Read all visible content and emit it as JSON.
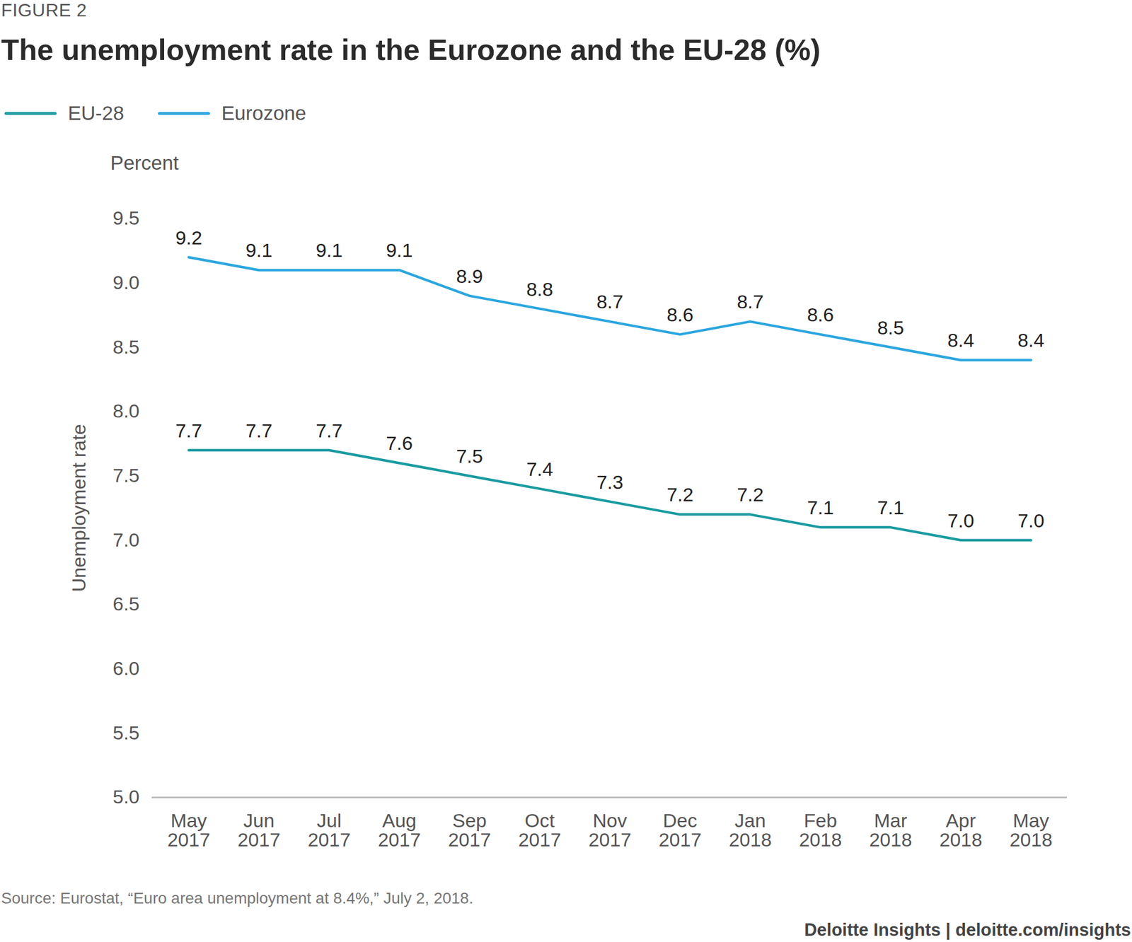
{
  "chart_data": {
    "type": "line",
    "figure_label": "FIGURE 2",
    "title": "The unemployment rate in the Eurozone and the EU-28 (%)",
    "y_unit_label": "Percent",
    "ylabel": "Unemployment rate",
    "source": "Source: Eurostat, “Euro area unemployment at 8.4%,” July 2, 2018.",
    "footer": "Deloitte Insights | deloitte.com/insights",
    "categories": [
      "May 2017",
      "Jun 2017",
      "Jul 2017",
      "Aug 2017",
      "Sep 2017",
      "Oct 2017",
      "Nov 2017",
      "Dec 2017",
      "Jan 2018",
      "Feb 2018",
      "Mar 2018",
      "Apr 2018",
      "May 2018"
    ],
    "series": [
      {
        "name": "EU-28",
        "color": "#1a9ba1",
        "values": [
          7.7,
          7.7,
          7.7,
          7.6,
          7.5,
          7.4,
          7.3,
          7.2,
          7.2,
          7.1,
          7.1,
          7.0,
          7.0
        ],
        "value_labels": [
          "7.7",
          "7.7",
          "7.7",
          "7.6",
          "7.5",
          "7.4",
          "7.3",
          "7.2",
          "7.2",
          "7.1",
          "7.1",
          "7.0",
          "7.0"
        ]
      },
      {
        "name": "Eurozone",
        "color": "#2ba6de",
        "values": [
          9.2,
          9.1,
          9.1,
          9.1,
          8.9,
          8.8,
          8.7,
          8.6,
          8.7,
          8.6,
          8.5,
          8.4,
          8.4
        ],
        "value_labels": [
          "9.2",
          "9.1",
          "9.1",
          "9.1",
          "8.9",
          "8.8",
          "8.7",
          "8.6",
          "8.7",
          "8.6",
          "8.5",
          "8.4",
          "8.4"
        ]
      }
    ],
    "ylim": [
      5,
      9.5
    ],
    "yticks": [
      {
        "value": 5,
        "label": "5.0"
      },
      5.5,
      {
        "value": 6,
        "label": "6.0"
      },
      6.5,
      {
        "value": 7,
        "label": "7.0"
      },
      7.5,
      {
        "value": 8,
        "label": "8.0"
      },
      8.5,
      {
        "value": 9,
        "label": "9.0"
      },
      9.5
    ],
    "grid": false,
    "legend": "top-left",
    "data_labels": true
  }
}
